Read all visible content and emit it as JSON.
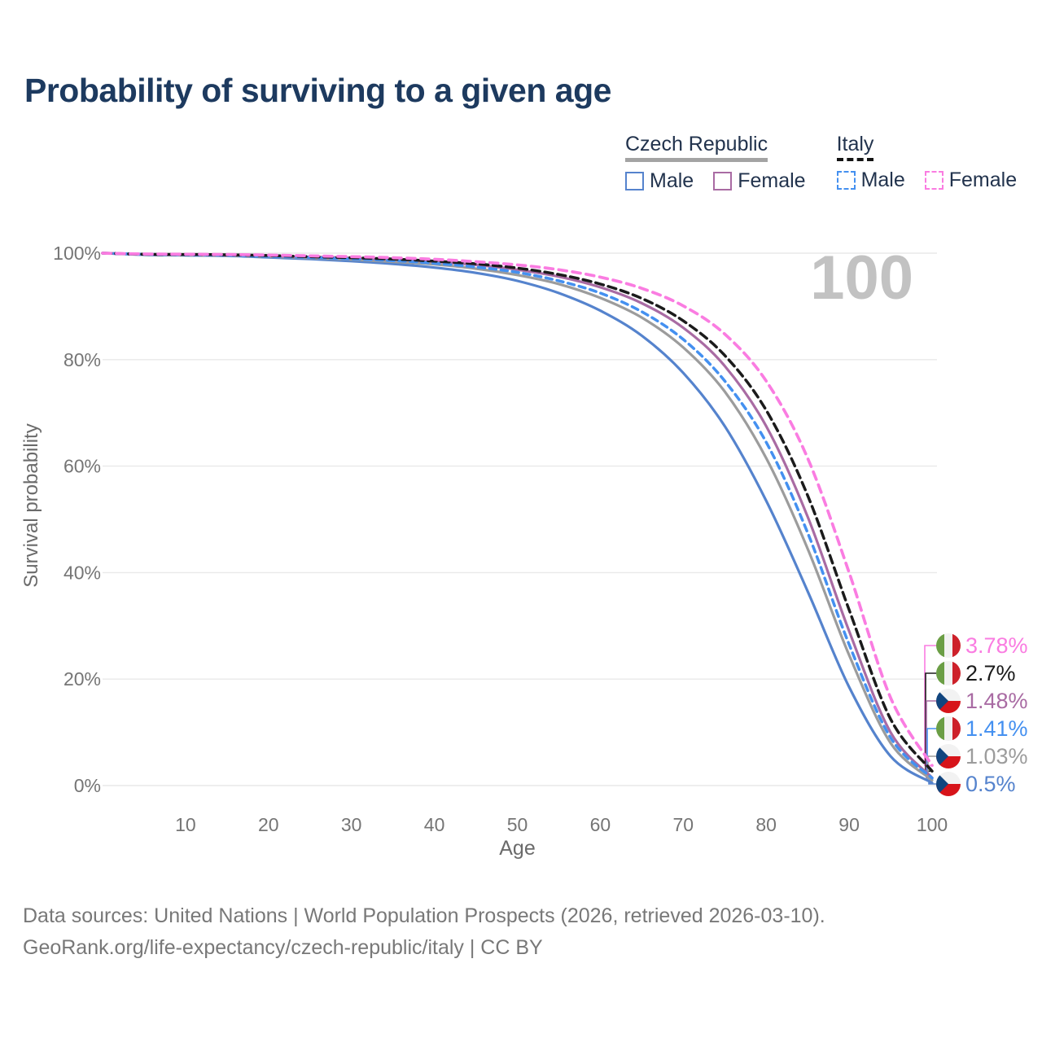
{
  "title": "Probability of surviving to a given age",
  "legend": {
    "groups": [
      {
        "name": "Czech Republic",
        "underline_style": "solid",
        "underline_color": "#a3a3a3",
        "items": [
          {
            "label": "Male",
            "color": "#5583cd",
            "dash": false
          },
          {
            "label": "Female",
            "color": "#a96ba3",
            "dash": false
          }
        ]
      },
      {
        "name": "Italy",
        "underline_style": "dashed",
        "underline_color": "#141414",
        "items": [
          {
            "label": "Male",
            "color": "#4490f0",
            "dash": true
          },
          {
            "label": "Female",
            "color": "#fa7ce1",
            "dash": true
          }
        ]
      }
    ]
  },
  "chart_data": {
    "type": "line",
    "title": "Probability of surviving to a given age",
    "xlabel": "Age",
    "ylabel": "Survival probability",
    "xlim": [
      0,
      100
    ],
    "ylim": [
      0,
      100
    ],
    "grid": "horizontal-only",
    "watermark": "100",
    "x_ticks": [
      10,
      20,
      30,
      40,
      50,
      60,
      70,
      80,
      90,
      100
    ],
    "y_ticks": [
      {
        "label": "100%",
        "value": 100
      },
      {
        "label": "80%",
        "value": 80
      },
      {
        "label": "60%",
        "value": 60
      },
      {
        "label": "40%",
        "value": 40
      },
      {
        "label": "20%",
        "value": 20
      },
      {
        "label": "0%",
        "value": 0
      }
    ],
    "ages": [
      0,
      5,
      10,
      15,
      20,
      25,
      30,
      35,
      40,
      45,
      50,
      55,
      60,
      65,
      70,
      75,
      80,
      85,
      90,
      95,
      100
    ],
    "series": [
      {
        "id": "cz-male",
        "name": "Czech Republic Male",
        "country": "cz",
        "color": "#5583cd",
        "dash": null,
        "width": 3.2,
        "values": [
          100,
          99.7,
          99.6,
          99.5,
          99.2,
          98.9,
          98.5,
          98.0,
          97.3,
          96.3,
          94.8,
          92.5,
          89.2,
          84.5,
          77.5,
          67.5,
          53.5,
          36.5,
          18.5,
          5.5,
          0.5
        ]
      },
      {
        "id": "cz-total",
        "name": "Czech Republic",
        "country": "cz",
        "color": "#9c9c9c",
        "dash": null,
        "width": 3.2,
        "values": [
          100,
          99.75,
          99.65,
          99.55,
          99.35,
          99.1,
          98.8,
          98.4,
          97.9,
          97.1,
          95.9,
          94.2,
          91.6,
          87.9,
          82.3,
          74.0,
          61.5,
          44.5,
          24.5,
          8.0,
          1.03
        ]
      },
      {
        "id": "cz-female",
        "name": "Czech Republic Female",
        "country": "cz",
        "color": "#a96ba3",
        "dash": null,
        "width": 3.2,
        "values": [
          100,
          99.8,
          99.75,
          99.65,
          99.5,
          99.3,
          99.1,
          98.8,
          98.4,
          97.8,
          96.9,
          95.6,
          93.6,
          90.6,
          86.0,
          78.8,
          67.5,
          50.5,
          29.0,
          10.0,
          1.48
        ]
      },
      {
        "id": "it-male",
        "name": "Italy Male",
        "country": "it",
        "color": "#4490f0",
        "dash": "8 6",
        "width": 3.5,
        "values": [
          100,
          99.8,
          99.7,
          99.6,
          99.4,
          99.2,
          98.9,
          98.6,
          98.1,
          97.4,
          96.4,
          94.8,
          92.5,
          89.0,
          83.8,
          76.0,
          64.5,
          47.5,
          26.5,
          9.0,
          1.41
        ]
      },
      {
        "id": "it-total",
        "name": "Italy",
        "country": "it",
        "color": "#1b1b1b",
        "dash": "10 6",
        "width": 3.5,
        "values": [
          100,
          99.8,
          99.75,
          99.7,
          99.55,
          99.35,
          99.15,
          98.9,
          98.5,
          98.0,
          97.2,
          96.0,
          94.2,
          91.5,
          87.3,
          80.8,
          70.5,
          54.5,
          33.0,
          12.5,
          2.7
        ]
      },
      {
        "id": "it-female",
        "name": "Italy Female",
        "country": "it",
        "color": "#fa7ce1",
        "dash": "10 7",
        "width": 3.7,
        "values": [
          100,
          99.85,
          99.8,
          99.75,
          99.65,
          99.5,
          99.35,
          99.15,
          98.85,
          98.4,
          97.8,
          96.9,
          95.5,
          93.4,
          90.1,
          84.8,
          76.0,
          61.5,
          40.0,
          16.5,
          3.78
        ]
      }
    ],
    "end_labels": [
      {
        "series": "it-female",
        "text": "3.78%"
      },
      {
        "series": "it-total",
        "text": "2.7%"
      },
      {
        "series": "cz-female",
        "text": "1.48%"
      },
      {
        "series": "it-male",
        "text": "1.41%"
      },
      {
        "series": "cz-total",
        "text": "1.03%"
      },
      {
        "series": "cz-male",
        "text": "0.5%"
      }
    ],
    "flag_colors": {
      "cz": {
        "white": "#f2f2f2",
        "red": "#d7141a",
        "blue": "#11457e"
      },
      "it": {
        "green": "#6b9e45",
        "white": "#f2f2f2",
        "red": "#cd212a"
      }
    }
  },
  "footer": {
    "line1": "Data sources: United Nations | World Population Prospects (2026, retrieved 2026-03-10).",
    "line2": "GeoRank.org/life-expectancy/czech-republic/italy | CC BY"
  }
}
